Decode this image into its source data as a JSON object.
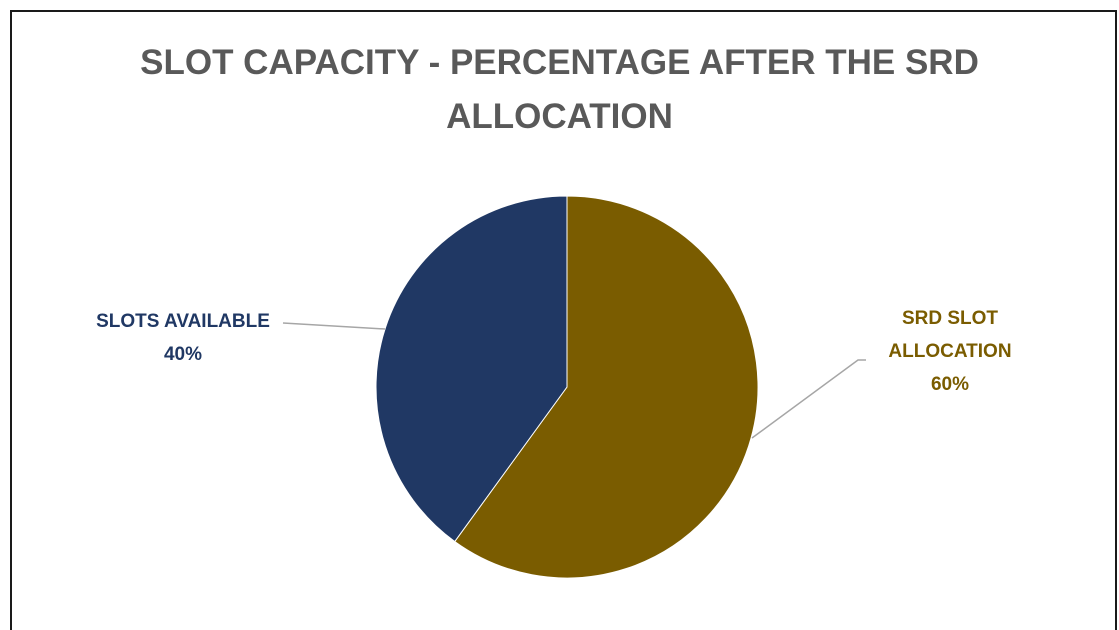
{
  "chart_data": {
    "type": "pie",
    "title_lines": [
      "SLOT CAPACITY - PERCENTAGE AFTER THE SRD",
      "ALLOCATION"
    ],
    "slices": [
      {
        "label_lines": [
          "SRD SLOT",
          "ALLOCATION"
        ],
        "value": 60,
        "value_label": "60%",
        "color": "#7a5c00"
      },
      {
        "label_lines": [
          "SLOTS AVAILABLE"
        ],
        "value": 40,
        "value_label": "40%",
        "color": "#203864"
      }
    ],
    "start_angle_deg": 0,
    "direction": "clockwise",
    "legend": "none"
  },
  "colors": {
    "title": "#595959",
    "leader_line": "#a6a6a6",
    "border": "#1a1a1a"
  }
}
